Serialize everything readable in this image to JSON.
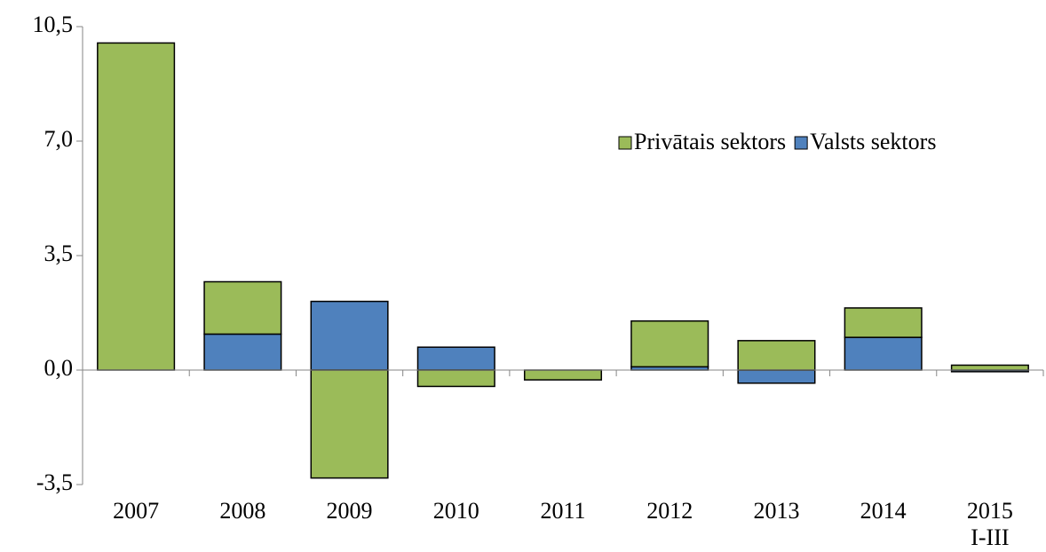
{
  "chart_data": {
    "type": "bar",
    "stacked": true,
    "categories": [
      "2007",
      "2008",
      "2009",
      "2010",
      "2011",
      "2012",
      "2013",
      "2014",
      "2015\nI-III"
    ],
    "series": [
      {
        "name": "Valsts sektors",
        "color": "#4f81bd",
        "values": [
          0.0,
          1.1,
          2.1,
          0.7,
          0.0,
          0.1,
          -0.4,
          1.0,
          -0.05
        ]
      },
      {
        "name": "Privātais sektors",
        "color": "#9bbb59",
        "values": [
          10.0,
          1.6,
          -3.3,
          -0.5,
          -0.3,
          1.4,
          0.9,
          0.9,
          0.15
        ]
      }
    ],
    "legend_order": [
      1,
      0
    ],
    "legend": "upper right",
    "ylim": [
      -3.5,
      10.5
    ],
    "yticks": [
      {
        "value": -3.5,
        "label": "-3,5"
      },
      {
        "value": 0,
        "label": "0,0"
      },
      {
        "value": 3.5,
        "label": "3,5"
      },
      {
        "value": 7,
        "label": "7,0"
      },
      {
        "value": 10.5,
        "label": "10,5"
      }
    ],
    "grid": false
  }
}
